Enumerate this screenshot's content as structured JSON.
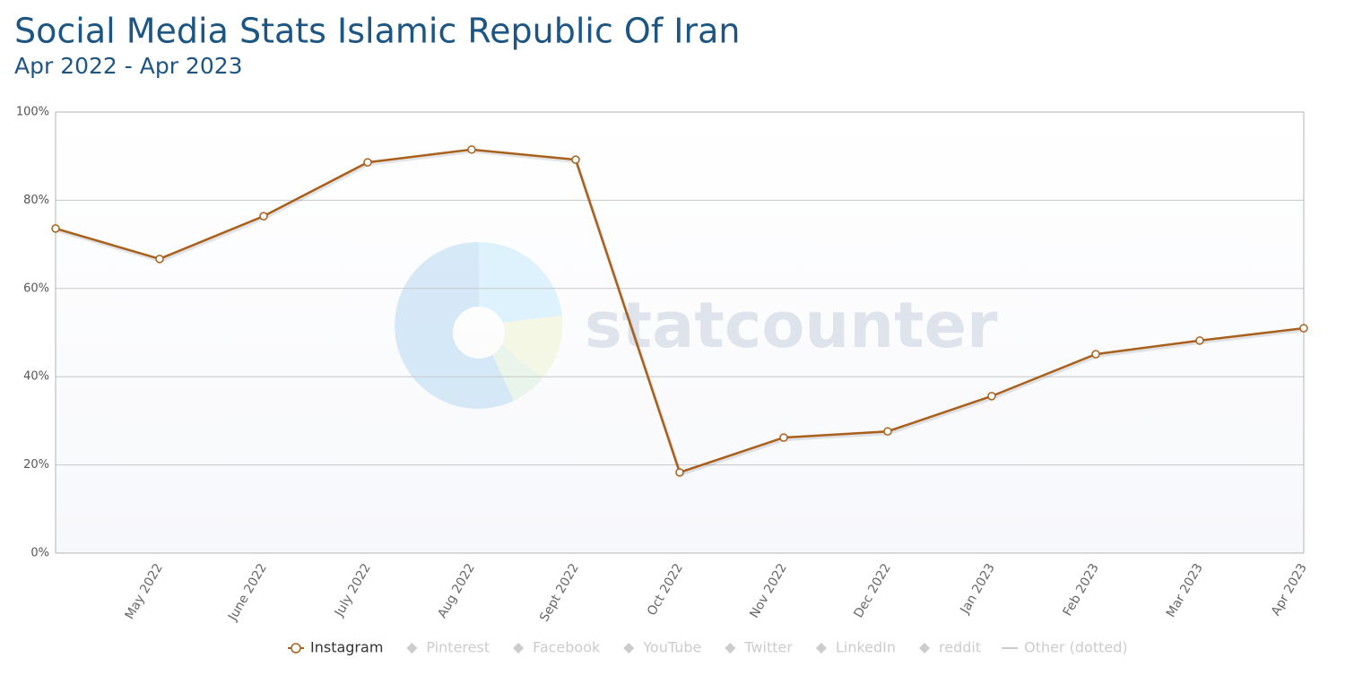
{
  "chart_data": {
    "type": "line",
    "title": "Social Media Stats Islamic Republic Of Iran",
    "subtitle": "Apr 2022 - Apr 2023",
    "watermark": "statcounter",
    "categories": [
      null,
      "May 2022",
      "June 2022",
      "July 2022",
      "Aug 2022",
      "Sept 2022",
      "Oct 2022",
      "Nov 2022",
      "Dec 2022",
      "Jan 2023",
      "Feb 2023",
      "Mar 2023",
      "Apr 2023"
    ],
    "series": [
      {
        "name": "Instagram",
        "color": "#a8601c",
        "values": [
          73.6,
          66.7,
          76.4,
          88.6,
          91.5,
          89.2,
          18.3,
          26.2,
          27.6,
          35.6,
          45.1,
          48.2,
          51.0
        ]
      }
    ],
    "inactive_legend": [
      "Pinterest",
      "Facebook",
      "YouTube",
      "Twitter",
      "LinkedIn",
      "reddit",
      "Other (dotted)"
    ],
    "ylim": [
      0,
      100
    ],
    "yticks": [
      {
        "value": 0,
        "label": "0%"
      },
      {
        "value": 20,
        "label": "20%"
      },
      {
        "value": 40,
        "label": "40%"
      },
      {
        "value": 60,
        "label": "60%"
      },
      {
        "value": 80,
        "label": "80%"
      },
      {
        "value": 100,
        "label": "100%"
      }
    ],
    "grid": true
  }
}
